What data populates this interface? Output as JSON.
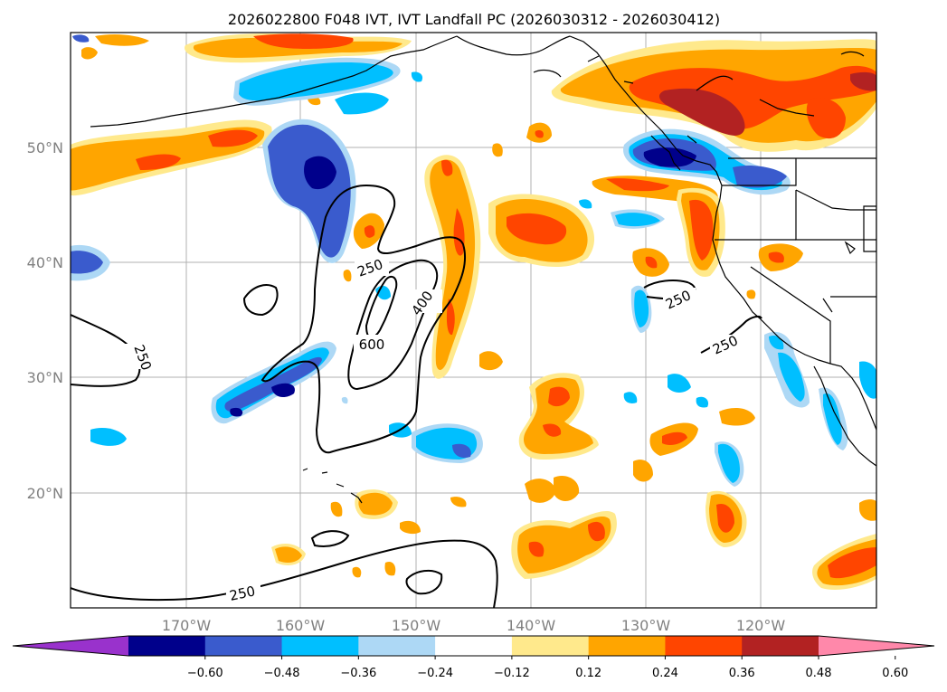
{
  "title": "2026022800 F048 IVT, IVT Landfall PC (2026030312 - 2026030412)",
  "axes": {
    "lon_labels": [
      "170°W",
      "160°W",
      "150°W",
      "140°W",
      "130°W",
      "120°W"
    ],
    "lat_labels": [
      "50°N",
      "40°N",
      "30°N",
      "20°N"
    ]
  },
  "colorbar": {
    "colors": [
      "#9932cc",
      "#00008b",
      "#3a5bcd",
      "#00bfff",
      "#add8f5",
      "#ffffff",
      "#ffe98c",
      "#ffa500",
      "#ff4500",
      "#b22222",
      "#ff88aa"
    ],
    "tick_labels": [
      "−0.60",
      "−0.48",
      "−0.36",
      "−0.24",
      "−0.12",
      "0.12",
      "0.24",
      "0.36",
      "0.48",
      "0.60"
    ]
  },
  "ivt_contour_labels": [
    "250",
    "250",
    "400",
    "600",
    "250",
    "250",
    "250"
  ]
}
